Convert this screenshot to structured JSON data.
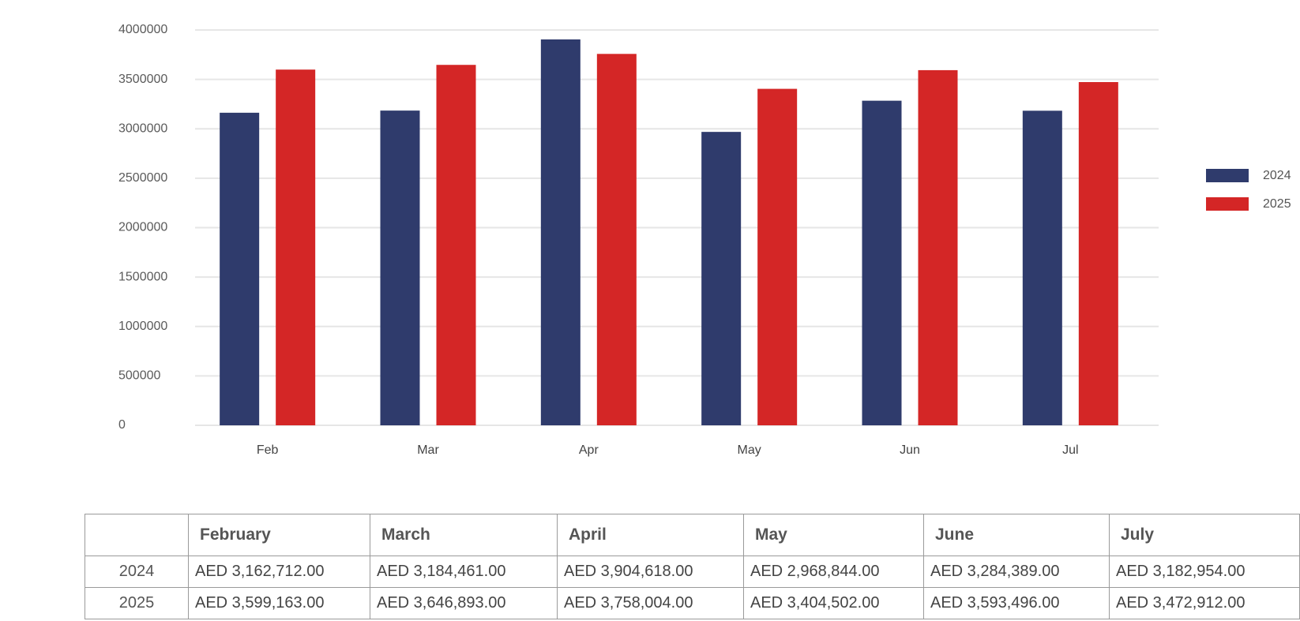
{
  "chart_data": {
    "type": "bar",
    "categories": [
      "Feb",
      "Mar",
      "Apr",
      "May",
      "Jun",
      "Jul"
    ],
    "series": [
      {
        "name": "2024",
        "color": "#2f3b6c",
        "values": [
          3162712,
          3184461,
          3904618,
          2968844,
          3284389,
          3182954
        ]
      },
      {
        "name": "2025",
        "color": "#d42626",
        "values": [
          3599163,
          3646893,
          3758004,
          3404502,
          3593496,
          3472912
        ]
      }
    ],
    "yticks": [
      "0",
      "500000",
      "1000000",
      "1500000",
      "2000000",
      "2500000",
      "3000000",
      "3500000",
      "4000000"
    ],
    "ylim": [
      0,
      4000000
    ],
    "grid": true,
    "legend_position": "right"
  },
  "table": {
    "corner": "",
    "headers": [
      "February",
      "March",
      "April",
      "May",
      "June",
      "July"
    ],
    "rows": [
      {
        "label": "2024",
        "cells": [
          "AED 3,162,712.00",
          "AED 3,184,461.00",
          "AED 3,904,618.00",
          "AED 2,968,844.00",
          "AED 3,284,389.00",
          "AED 3,182,954.00"
        ]
      },
      {
        "label": "2025",
        "cells": [
          "AED 3,599,163.00",
          "AED 3,646,893.00",
          "AED 3,758,004.00",
          "AED 3,404,502.00",
          "AED 3,593,496.00",
          "AED 3,472,912.00"
        ]
      }
    ]
  }
}
